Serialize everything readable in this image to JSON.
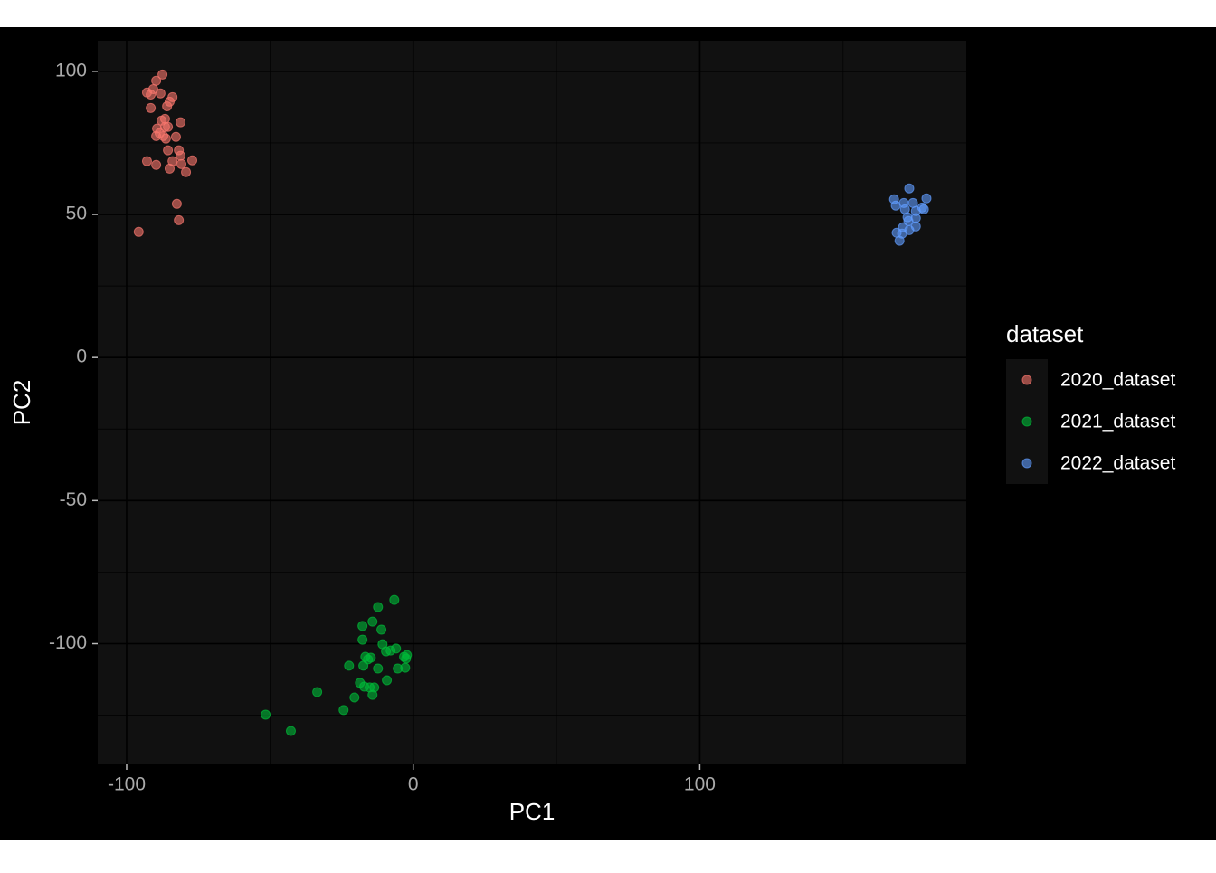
{
  "chart_data": {
    "type": "scatter",
    "x_label": "PC1",
    "y_label": "PC2",
    "legend_title": "dataset",
    "legend_position": "right",
    "grid": true,
    "xlim": [
      -110.1,
      193.0
    ],
    "ylim": [
      -142.2,
      110.7
    ],
    "xticks": [
      -100,
      0,
      100
    ],
    "yticks": [
      -100,
      -50,
      0,
      50,
      100
    ],
    "series": [
      {
        "name": "2020_dataset",
        "color": "#F8766D",
        "x": [
          -87.5,
          -89.7,
          -92.9,
          -90.7,
          -91.6,
          -88.2,
          -84.0,
          -85.0,
          -85.9,
          -91.6,
          -86.6,
          -87.8,
          -81.2,
          -89.4,
          -86.6,
          -85.6,
          -88.5,
          -87.2,
          -82.8,
          -86.3,
          -89.7,
          -81.8,
          -85.6,
          -81.2,
          -77.1,
          -92.9,
          -89.7,
          -84.0,
          -85.0,
          -80.9,
          -79.3,
          -82.5,
          -81.8,
          -95.8
        ],
        "values": [
          98.9,
          96.7,
          92.6,
          93.8,
          91.9,
          92.3,
          91.0,
          89.4,
          87.8,
          87.2,
          83.4,
          82.8,
          82.2,
          80.0,
          80.6,
          80.6,
          78.4,
          77.4,
          77.1,
          76.5,
          77.4,
          72.4,
          72.4,
          70.5,
          68.9,
          68.6,
          67.3,
          68.6,
          66.0,
          67.6,
          64.8,
          53.7,
          48.0,
          43.9
        ]
      },
      {
        "name": "2021_dataset",
        "color": "#00BA38",
        "x": [
          -6.6,
          -12.3,
          -14.2,
          -17.7,
          -11.1,
          -17.7,
          -10.7,
          -6.0,
          -7.9,
          -9.5,
          -2.2,
          -3.2,
          -16.7,
          -14.8,
          -2.5,
          -15.8,
          -22.4,
          -17.4,
          -12.3,
          -5.4,
          -2.8,
          -9.2,
          -18.6,
          -15.2,
          -13.6,
          -17.1,
          -14.2,
          -20.5,
          -33.5,
          -24.3,
          -51.5,
          -42.7
        ],
        "values": [
          -84.7,
          -87.2,
          -92.3,
          -93.8,
          -95.1,
          -98.6,
          -100.2,
          -101.7,
          -102.4,
          -102.7,
          -104.0,
          -104.6,
          -104.6,
          -104.9,
          -105.2,
          -105.5,
          -107.7,
          -107.7,
          -108.7,
          -108.7,
          -108.4,
          -112.8,
          -113.7,
          -115.3,
          -115.3,
          -115.0,
          -117.9,
          -118.8,
          -116.9,
          -123.2,
          -124.8,
          -130.5
        ]
      },
      {
        "name": "2022_dataset",
        "color": "#619CFF",
        "x": [
          173.1,
          167.8,
          179.1,
          171.2,
          174.4,
          168.4,
          177.6,
          171.6,
          175.4,
          178.2,
          172.5,
          175.4,
          172.8,
          170.9,
          175.4,
          173.1,
          168.7,
          170.6,
          169.7
        ],
        "values": [
          59.1,
          55.3,
          55.6,
          54.0,
          54.0,
          53.1,
          52.4,
          51.8,
          51.2,
          51.8,
          49.0,
          48.7,
          47.7,
          45.5,
          45.8,
          44.5,
          43.6,
          43.3,
          40.8
        ]
      }
    ]
  }
}
